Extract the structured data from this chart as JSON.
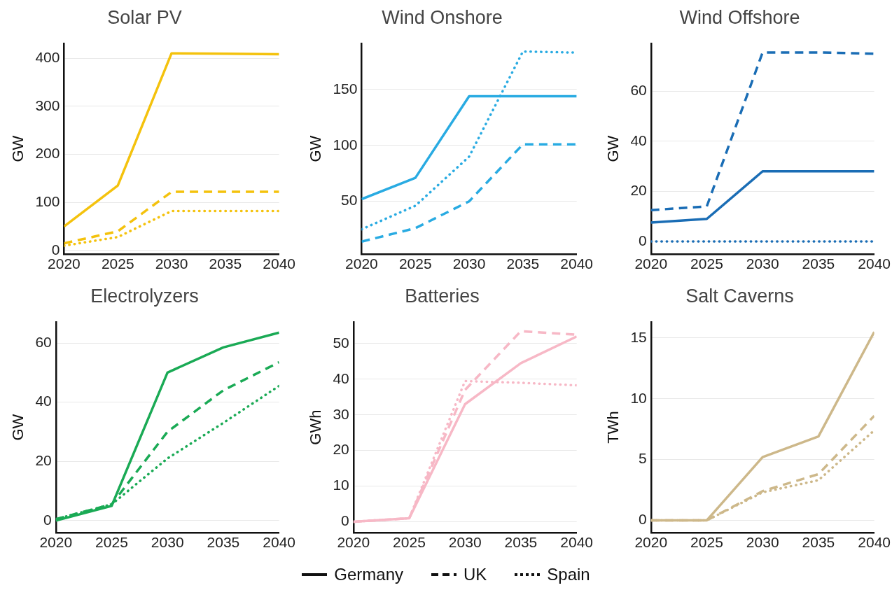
{
  "chart_data": [
    {
      "type": "line",
      "title": "Solar PV",
      "ylabel": "GW",
      "xlim": [
        2020,
        2040
      ],
      "xticks": [
        2020,
        2025,
        2030,
        2035,
        2040
      ],
      "ylim": [
        -7,
        430
      ],
      "yticks": [
        0,
        100,
        200,
        300,
        400
      ],
      "grid": "y",
      "legend": "bottom",
      "marker": "none",
      "x": [
        2020,
        2025,
        2030,
        2035,
        2040
      ],
      "series": [
        {
          "name": "Germany",
          "color": "#f4c20d",
          "line_style": "solid",
          "values": [
            50,
            135,
            410,
            409,
            408
          ]
        },
        {
          "name": "UK",
          "color": "#f4c20d",
          "line_style": "dashed",
          "values": [
            15,
            40,
            122,
            122,
            122
          ]
        },
        {
          "name": "Spain",
          "color": "#f4c20d",
          "line_style": "dotted",
          "values": [
            10,
            28,
            82,
            82,
            82
          ]
        }
      ]
    },
    {
      "type": "line",
      "title": "Wind Onshore",
      "ylabel": "GW",
      "xlim": [
        2020,
        2040
      ],
      "xticks": [
        2020,
        2025,
        2030,
        2035,
        2040
      ],
      "ylim": [
        3,
        191
      ],
      "yticks": [
        50,
        100,
        150
      ],
      "grid": "y",
      "marker": "none",
      "x": [
        2020,
        2025,
        2030,
        2035,
        2040
      ],
      "series": [
        {
          "color": "#29abe2",
          "line_style": "solid",
          "values": [
            52,
            71,
            144,
            144,
            144
          ]
        },
        {
          "color": "#29abe2",
          "line_style": "dashed",
          "values": [
            14,
            26,
            50,
            101,
            101
          ]
        },
        {
          "color": "#29abe2",
          "line_style": "dotted",
          "values": [
            25,
            46,
            90,
            184,
            183
          ]
        }
      ]
    },
    {
      "type": "line",
      "title": "Wind Offshore",
      "ylabel": "GW",
      "xlim": [
        2020,
        2040
      ],
      "xticks": [
        2020,
        2025,
        2030,
        2035,
        2040
      ],
      "ylim": [
        -5,
        79
      ],
      "yticks": [
        0,
        20,
        40,
        60
      ],
      "grid": "y",
      "marker": "none",
      "x": [
        2020,
        2025,
        2030,
        2035,
        2040
      ],
      "series": [
        {
          "color": "#1a6db5",
          "line_style": "solid",
          "values": [
            7.5,
            9,
            28,
            28,
            28
          ]
        },
        {
          "color": "#1a6db5",
          "line_style": "dashed",
          "values": [
            12.5,
            14,
            75.5,
            75.5,
            75
          ]
        },
        {
          "color": "#1a6db5",
          "line_style": "dotted",
          "values": [
            0,
            0,
            0,
            0,
            0
          ]
        }
      ]
    },
    {
      "type": "line",
      "title": "Electrolyzers",
      "ylabel": "GW",
      "xlim": [
        2020,
        2040
      ],
      "xticks": [
        2020,
        2025,
        2030,
        2035,
        2040
      ],
      "ylim": [
        -4,
        67
      ],
      "yticks": [
        0,
        20,
        40,
        60
      ],
      "grid": "y",
      "marker": "none",
      "x": [
        2020,
        2025,
        2030,
        2035,
        2040
      ],
      "series": [
        {
          "color": "#1aaa55",
          "line_style": "solid",
          "values": [
            0,
            5,
            50,
            58.5,
            63.5
          ]
        },
        {
          "color": "#1aaa55",
          "line_style": "dashed",
          "values": [
            0.5,
            5.5,
            30,
            44,
            53.5
          ]
        },
        {
          "color": "#1aaa55",
          "line_style": "dotted",
          "values": [
            0.5,
            5.5,
            21,
            33,
            45.5
          ]
        }
      ]
    },
    {
      "type": "line",
      "title": "Batteries",
      "ylabel": "GWh",
      "xlim": [
        2020,
        2040
      ],
      "xticks": [
        2020,
        2025,
        2030,
        2035,
        2040
      ],
      "ylim": [
        -3,
        56
      ],
      "yticks": [
        0,
        10,
        20,
        30,
        40,
        50
      ],
      "grid": "y",
      "marker": "none",
      "x": [
        2020,
        2025,
        2030,
        2035,
        2040
      ],
      "series": [
        {
          "color": "#f7b8c6",
          "line_style": "solid",
          "values": [
            0,
            1,
            33,
            44.5,
            52
          ]
        },
        {
          "color": "#f7b8c6",
          "line_style": "dashed",
          "values": [
            0,
            1,
            37,
            53.5,
            52.5
          ]
        },
        {
          "color": "#f7b8c6",
          "line_style": "dotted",
          "values": [
            0,
            1,
            39.5,
            39,
            38.3
          ]
        }
      ]
    },
    {
      "type": "line",
      "title": "Salt Caverns",
      "ylabel": "TWh",
      "xlim": [
        2020,
        2040
      ],
      "xticks": [
        2020,
        2025,
        2030,
        2035,
        2040
      ],
      "ylim": [
        -1,
        16.3
      ],
      "yticks": [
        0,
        5,
        10,
        15
      ],
      "grid": "y",
      "marker": "none",
      "x": [
        2020,
        2025,
        2030,
        2035,
        2040
      ],
      "series": [
        {
          "color": "#cdb88a",
          "line_style": "solid",
          "values": [
            0,
            0,
            5.2,
            6.9,
            15.5
          ]
        },
        {
          "color": "#cdb88a",
          "line_style": "dashed",
          "values": [
            0,
            0,
            2.4,
            3.8,
            8.6
          ]
        },
        {
          "color": "#cdb88a",
          "line_style": "dotted",
          "values": [
            0,
            0,
            2.3,
            3.3,
            7.4
          ]
        }
      ]
    }
  ]
}
